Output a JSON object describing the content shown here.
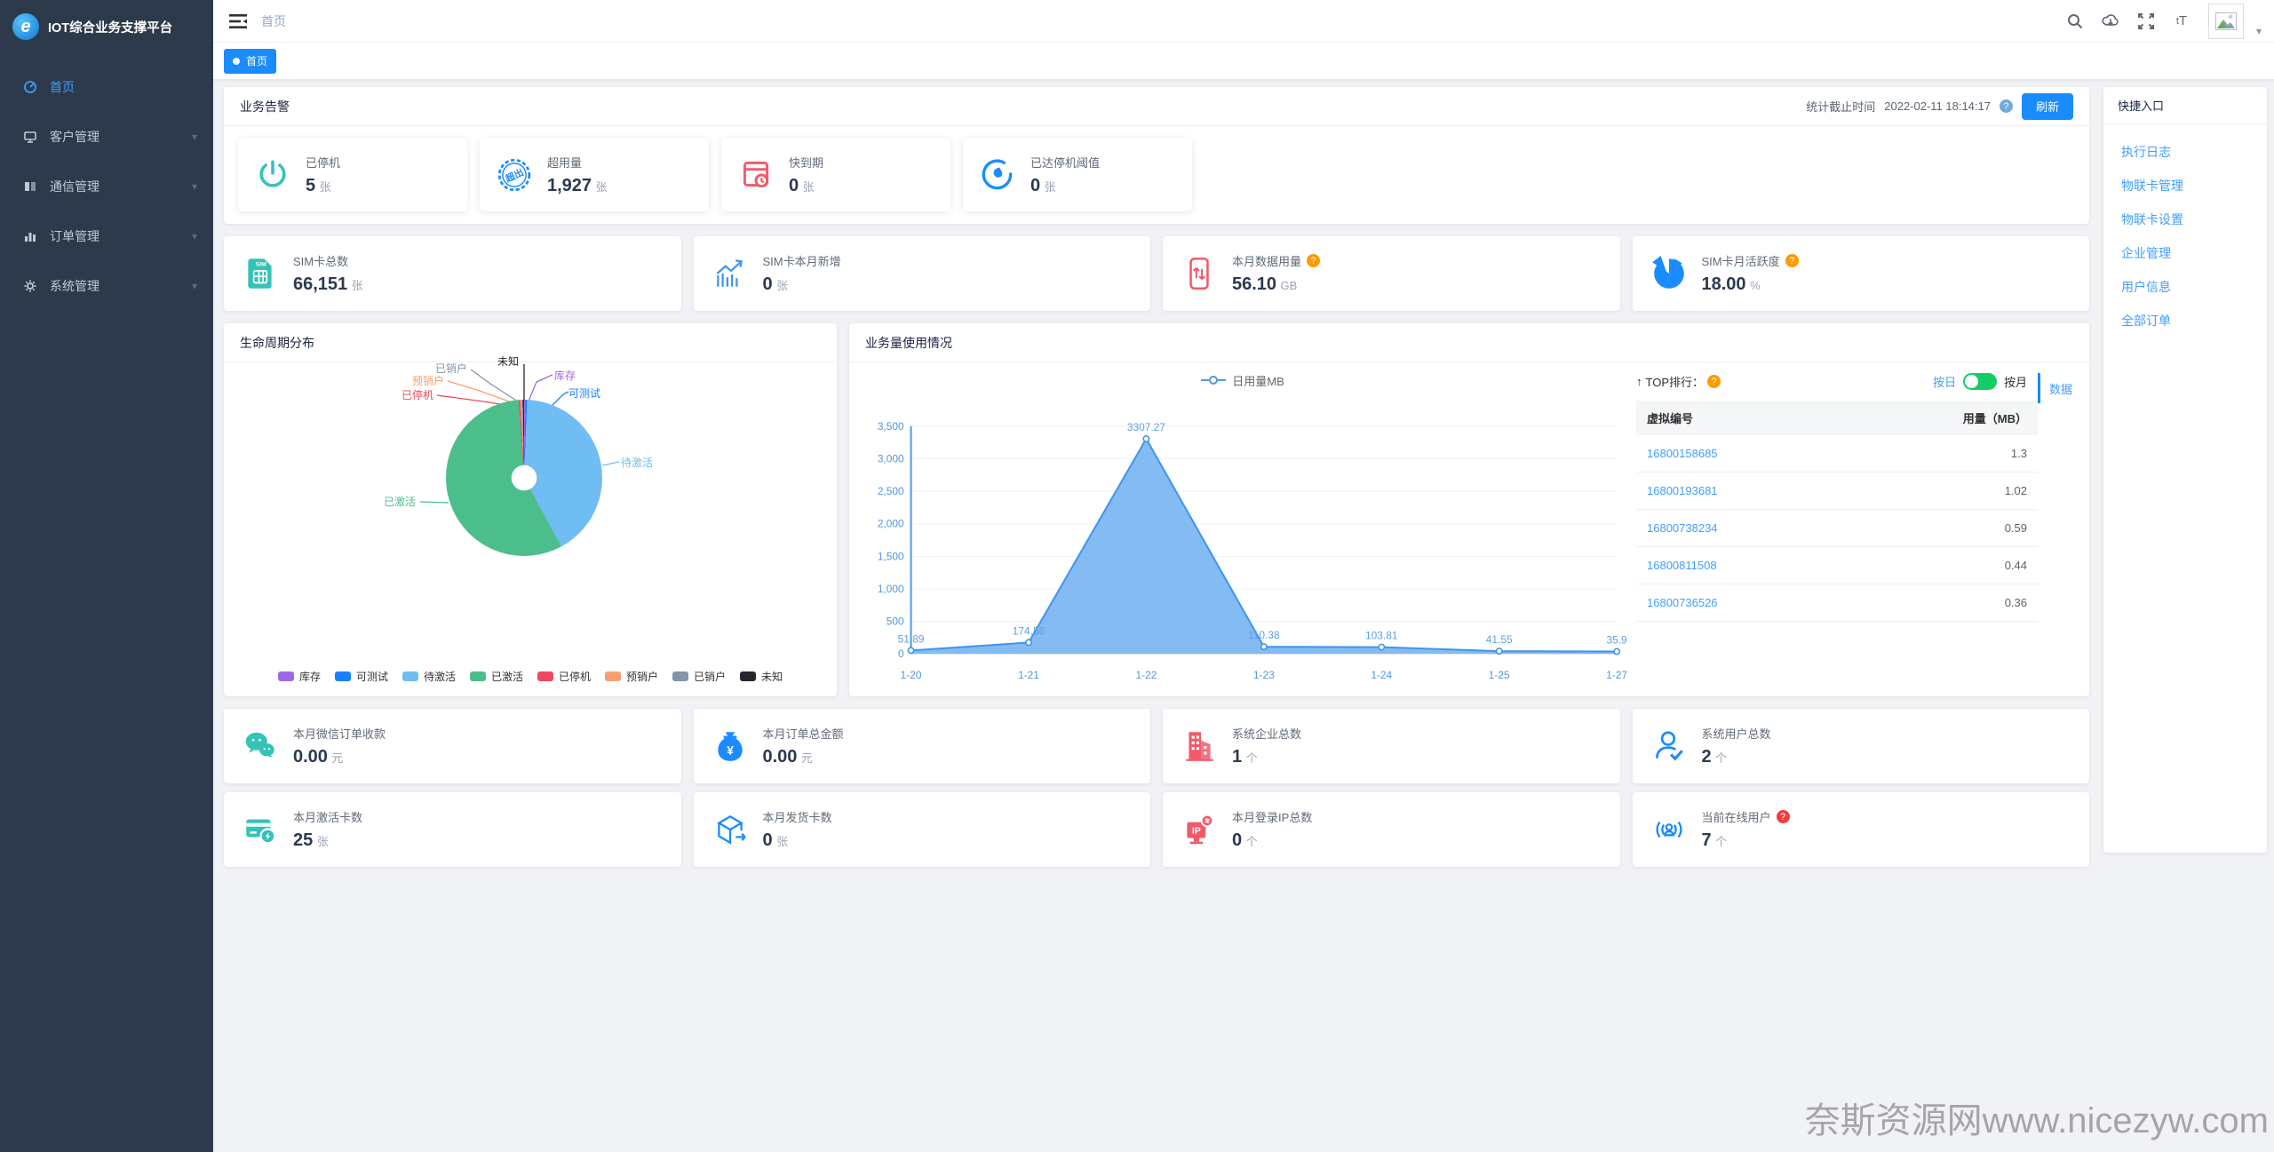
{
  "app": {
    "title": "IOT综合业务支撑平台"
  },
  "sidebar": {
    "items": [
      {
        "label": "首页"
      },
      {
        "label": "客户管理"
      },
      {
        "label": "通信管理"
      },
      {
        "label": "订单管理"
      },
      {
        "label": "系统管理"
      }
    ]
  },
  "topbar": {
    "breadcrumb": "首页",
    "tag": "首页"
  },
  "alerts": {
    "title": "业务告警",
    "stat_time_label": "统计截止时间",
    "stat_time": "2022-02-11 18:14:17",
    "refresh_label": "刷新",
    "cards": [
      {
        "label": "已停机",
        "value": "5",
        "unit": "张"
      },
      {
        "label": "超用量",
        "value": "1,927",
        "unit": "张"
      },
      {
        "label": "快到期",
        "value": "0",
        "unit": "张"
      },
      {
        "label": "已达停机阈值",
        "value": "0",
        "unit": "张"
      }
    ]
  },
  "sim_stats": {
    "cards": [
      {
        "label": "SIM卡总数",
        "value": "66,151",
        "unit": "张"
      },
      {
        "label": "SIM卡本月新增",
        "value": "0",
        "unit": "张"
      },
      {
        "label": "本月数据用量",
        "value": "56.10",
        "unit": "GB"
      },
      {
        "label": "SIM卡月活跃度",
        "value": "18.00",
        "unit": "%"
      }
    ]
  },
  "lifecycle": {
    "title": "生命周期分布"
  },
  "usage": {
    "title": "业务量使用情况",
    "legend": "日用量MB"
  },
  "top_rank": {
    "title": "TOP排行：",
    "toggle_left": "按日",
    "toggle_right": "按月",
    "tab": "数据",
    "columns": [
      "虚拟编号",
      "用量（MB）"
    ],
    "rows": [
      {
        "id": "16800158685",
        "usage": "1.3"
      },
      {
        "id": "16800193681",
        "usage": "1.02"
      },
      {
        "id": "16800738234",
        "usage": "0.59"
      },
      {
        "id": "16800811508",
        "usage": "0.44"
      },
      {
        "id": "16800736526",
        "usage": "0.36"
      }
    ]
  },
  "bottom_stats": {
    "cards": [
      {
        "label": "本月微信订单收款",
        "value": "0.00",
        "unit": "元"
      },
      {
        "label": "本月订单总金额",
        "value": "0.00",
        "unit": "元"
      },
      {
        "label": "系统企业总数",
        "value": "1",
        "unit": "个"
      },
      {
        "label": "系统用户总数",
        "value": "2",
        "unit": "个"
      },
      {
        "label": "本月激活卡数",
        "value": "25",
        "unit": "张"
      },
      {
        "label": "本月发货卡数",
        "value": "0",
        "unit": "张"
      },
      {
        "label": "本月登录IP总数",
        "value": "0",
        "unit": "个"
      },
      {
        "label": "当前在线用户",
        "value": "7",
        "unit": "个"
      }
    ]
  },
  "quick_entry": {
    "title": "快捷入口",
    "links": [
      {
        "label": "执行日志"
      },
      {
        "label": "物联卡管理"
      },
      {
        "label": "物联卡设置"
      },
      {
        "label": "企业管理"
      },
      {
        "label": "用户信息"
      },
      {
        "label": "全部订单"
      }
    ]
  },
  "watermark": "奈斯资源网www.nicezyw.com",
  "colors": {
    "accent": "#1a8cff",
    "link": "#409eff",
    "teal": "#35c3b6",
    "red": "#f25a6b",
    "toggle_green": "#13ce66"
  },
  "chart_data": [
    {
      "type": "pie",
      "title": "生命周期分布",
      "labels": [
        "库存",
        "可测试",
        "待激活",
        "已激活",
        "已停机",
        "预销户",
        "已销户",
        "未知"
      ],
      "values_percent": [
        0.3,
        0.3,
        41.5,
        56.8,
        0.3,
        0.3,
        0.25,
        0.25
      ],
      "colors": [
        "#a168e6",
        "#1780ff",
        "#70bdf3",
        "#4cbe8c",
        "#f0485e",
        "#f99e71",
        "#8595a8",
        "#25282e"
      ],
      "legend_position": "bottom",
      "donut": true
    },
    {
      "type": "area",
      "title": "业务量使用情况",
      "x": [
        "1-20",
        "1-21",
        "1-22",
        "1-23",
        "1-24",
        "1-25",
        "1-27"
      ],
      "series": [
        {
          "name": "日用量MB",
          "values": [
            51.89,
            174.56,
            3307.27,
            110.38,
            103.81,
            41.55,
            35.9
          ]
        }
      ],
      "ylim": [
        0,
        3500
      ],
      "ytick_step": 500,
      "grid": true,
      "line_color": "#3d94ee",
      "fill_color": "#79b5f1",
      "label_color": "#5b9fe8",
      "axis_text_color": "#4f97e0",
      "legend_position": "top"
    }
  ]
}
